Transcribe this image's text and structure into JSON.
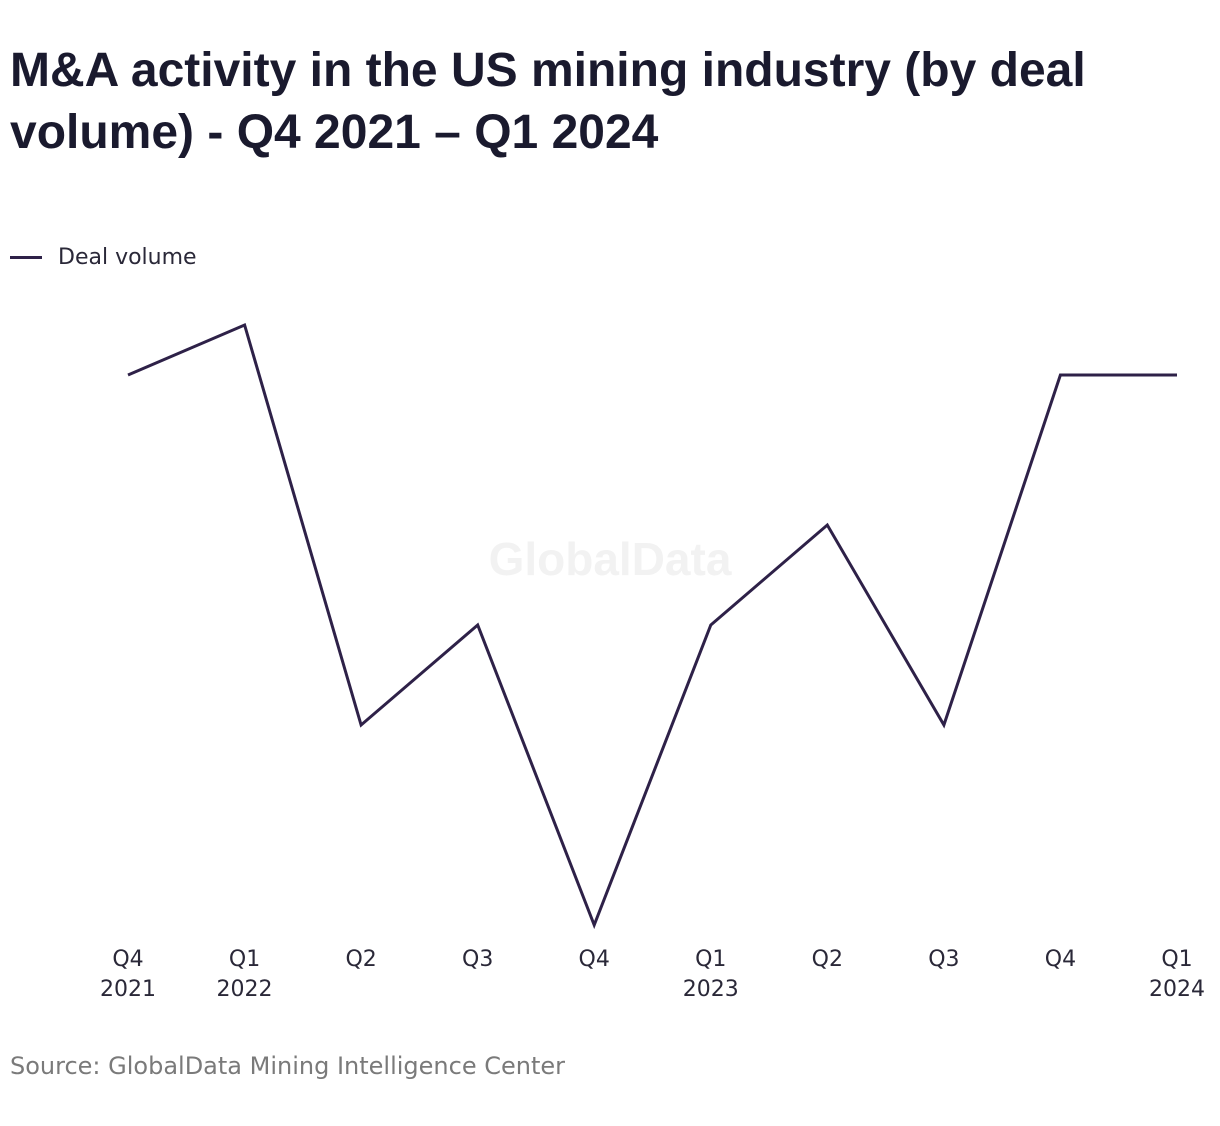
{
  "title": "M&A activity in the US mining industry (by deal volume) - Q4 2021 – Q1 2024",
  "legend": {
    "label": "Deal volume"
  },
  "watermark": "GlobalData",
  "source": "Source: GlobalData Mining Intelligence Center",
  "colors": {
    "line": "#2e2148",
    "watermark": "#f2f2f2",
    "tick_text": "#2a2838"
  },
  "chart_data": {
    "type": "line",
    "title": "M&A activity in the US mining industry (by deal volume) - Q4 2021 – Q1 2024",
    "xlabel": "",
    "ylabel": "",
    "categories": [
      [
        "Q4",
        "2021"
      ],
      [
        "Q1",
        "2022"
      ],
      [
        "Q2"
      ],
      [
        "Q3"
      ],
      [
        "Q4"
      ],
      [
        "Q1",
        "2023"
      ],
      [
        "Q2"
      ],
      [
        "Q3"
      ],
      [
        "Q4"
      ],
      [
        "Q1",
        "2024"
      ]
    ],
    "series": [
      {
        "name": "Deal volume",
        "values": [
          10.5,
          11,
          7,
          8,
          5,
          8,
          9,
          7,
          10.5,
          10.5
        ]
      }
    ],
    "ylim": [
      5,
      11
    ],
    "grid": false,
    "legend_position": "top-left",
    "y_axis_labels_shown": false
  }
}
